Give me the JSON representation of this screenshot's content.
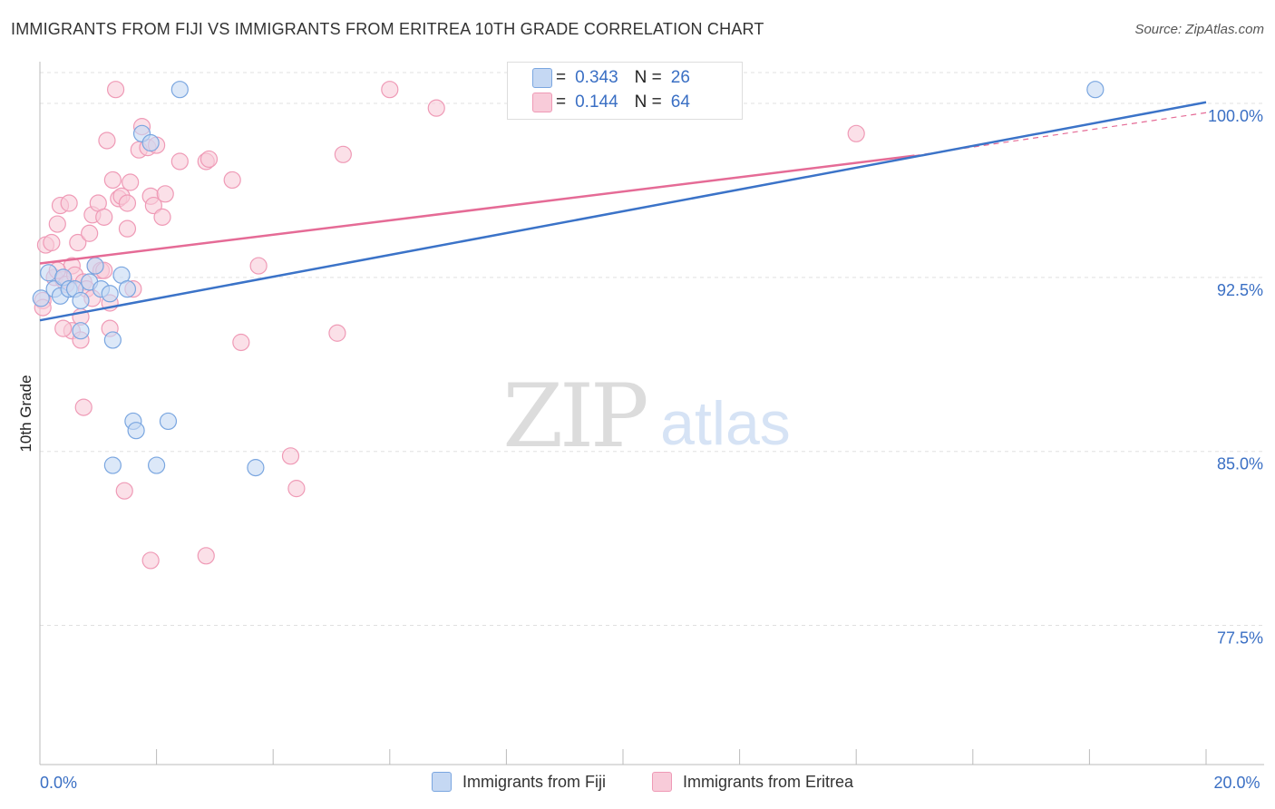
{
  "header": {
    "title": "IMMIGRANTS FROM FIJI VS IMMIGRANTS FROM ERITREA 10TH GRADE CORRELATION CHART",
    "source": "Source: ZipAtlas.com"
  },
  "watermark": {
    "zip": "ZIP",
    "atlas": "atlas"
  },
  "stats_legend": [
    {
      "r_label": "R =",
      "r_value": "0.343",
      "n_label": "N =",
      "n_value": "26"
    },
    {
      "r_label": "R =",
      "r_value": "0.144",
      "n_label": "N =",
      "n_value": "64"
    }
  ],
  "colors": {
    "fiji_fill": "#c5d8f3",
    "fiji_stroke": "#7aa6e0",
    "fiji_line": "#3b73c8",
    "eritrea_fill": "#f8cbd9",
    "eritrea_stroke": "#ef9ab6",
    "eritrea_line": "#e56b96",
    "tick_label": "#3a6fc4",
    "grid": "#e0e0e0"
  },
  "chart_data": {
    "type": "scatter",
    "title": "IMMIGRANTS FROM FIJI VS IMMIGRANTS FROM ERITREA 10TH GRADE CORRELATION CHART",
    "xlabel": "",
    "ylabel": "10th Grade",
    "xlim": [
      0.0,
      20.0
    ],
    "ylim": [
      71.5,
      101.8
    ],
    "x_tick_labels": [
      {
        "value": 0.0,
        "label": "0.0%"
      },
      {
        "value": 20.0,
        "label": "20.0%"
      }
    ],
    "y_ticks": [
      {
        "value": 100.0,
        "label": "100.0%"
      },
      {
        "value": 92.5,
        "label": "92.5%"
      },
      {
        "value": 85.0,
        "label": "85.0%"
      },
      {
        "value": 77.5,
        "label": "77.5%"
      }
    ],
    "grid": true,
    "legend_position": "bottom",
    "series": [
      {
        "name": "Immigrants from Fiji",
        "color": "#7aa6e0",
        "points": [
          [
            0.02,
            91.6
          ],
          [
            0.15,
            92.7
          ],
          [
            0.25,
            92.0
          ],
          [
            0.35,
            91.7
          ],
          [
            0.4,
            92.5
          ],
          [
            0.5,
            92.0
          ],
          [
            0.6,
            92.0
          ],
          [
            0.7,
            91.5
          ],
          [
            0.7,
            90.2
          ],
          [
            0.85,
            92.3
          ],
          [
            0.95,
            93.0
          ],
          [
            1.05,
            92.0
          ],
          [
            1.2,
            91.8
          ],
          [
            1.4,
            92.6
          ],
          [
            1.5,
            92.0
          ],
          [
            1.25,
            89.8
          ],
          [
            2.4,
            100.6
          ],
          [
            1.75,
            98.7
          ],
          [
            1.9,
            98.3
          ],
          [
            1.6,
            86.3
          ],
          [
            1.65,
            85.9
          ],
          [
            2.2,
            86.3
          ],
          [
            1.25,
            84.4
          ],
          [
            2.0,
            84.4
          ],
          [
            3.7,
            84.3
          ],
          [
            18.1,
            100.6
          ]
        ],
        "trend": {
          "x": [
            0.0,
            20.0
          ],
          "y": [
            90.65,
            100.05
          ]
        }
      },
      {
        "name": "Immigrants from Eritrea",
        "color": "#ef9ab6",
        "points": [
          [
            0.05,
            91.5
          ],
          [
            0.05,
            91.2
          ],
          [
            0.1,
            93.9
          ],
          [
            0.2,
            94.0
          ],
          [
            0.25,
            92.5
          ],
          [
            0.3,
            94.8
          ],
          [
            0.35,
            95.6
          ],
          [
            0.4,
            92.4
          ],
          [
            0.45,
            92.2
          ],
          [
            0.55,
            90.2
          ],
          [
            0.5,
            95.7
          ],
          [
            0.55,
            93.0
          ],
          [
            0.6,
            92.6
          ],
          [
            0.65,
            94.0
          ],
          [
            0.7,
            90.8
          ],
          [
            0.75,
            92.3
          ],
          [
            0.8,
            92.0
          ],
          [
            0.85,
            94.4
          ],
          [
            0.9,
            91.6
          ],
          [
            0.9,
            95.2
          ],
          [
            0.95,
            93.0
          ],
          [
            1.0,
            95.7
          ],
          [
            1.05,
            92.8
          ],
          [
            1.1,
            95.1
          ],
          [
            1.1,
            92.8
          ],
          [
            1.15,
            98.4
          ],
          [
            1.2,
            91.4
          ],
          [
            1.2,
            90.3
          ],
          [
            1.25,
            96.7
          ],
          [
            1.35,
            95.9
          ],
          [
            1.4,
            96.0
          ],
          [
            1.5,
            95.7
          ],
          [
            1.55,
            96.6
          ],
          [
            1.5,
            94.6
          ],
          [
            1.6,
            92.0
          ],
          [
            1.7,
            98.0
          ],
          [
            1.75,
            99.0
          ],
          [
            1.85,
            98.1
          ],
          [
            1.9,
            96.0
          ],
          [
            1.95,
            95.6
          ],
          [
            2.0,
            98.2
          ],
          [
            2.1,
            95.1
          ],
          [
            2.15,
            96.1
          ],
          [
            2.4,
            97.5
          ],
          [
            2.85,
            97.5
          ],
          [
            2.9,
            97.6
          ],
          [
            3.3,
            96.7
          ],
          [
            3.45,
            89.7
          ],
          [
            3.75,
            93.0
          ],
          [
            1.3,
            100.6
          ],
          [
            6.0,
            100.6
          ],
          [
            6.8,
            99.8
          ],
          [
            5.2,
            97.8
          ],
          [
            5.1,
            90.1
          ],
          [
            14.0,
            98.7
          ],
          [
            0.75,
            86.9
          ],
          [
            4.3,
            84.8
          ],
          [
            1.45,
            83.3
          ],
          [
            4.4,
            83.4
          ],
          [
            1.9,
            80.3
          ],
          [
            2.85,
            80.5
          ],
          [
            0.3,
            92.8
          ],
          [
            0.7,
            89.8
          ],
          [
            0.4,
            90.3
          ]
        ],
        "trend": {
          "x": [
            0.0,
            15.0
          ],
          "y": [
            93.1,
            97.75
          ]
        },
        "trend_dashed": {
          "x": [
            15.0,
            20.0
          ],
          "y": [
            97.75,
            99.6
          ]
        }
      }
    ]
  }
}
